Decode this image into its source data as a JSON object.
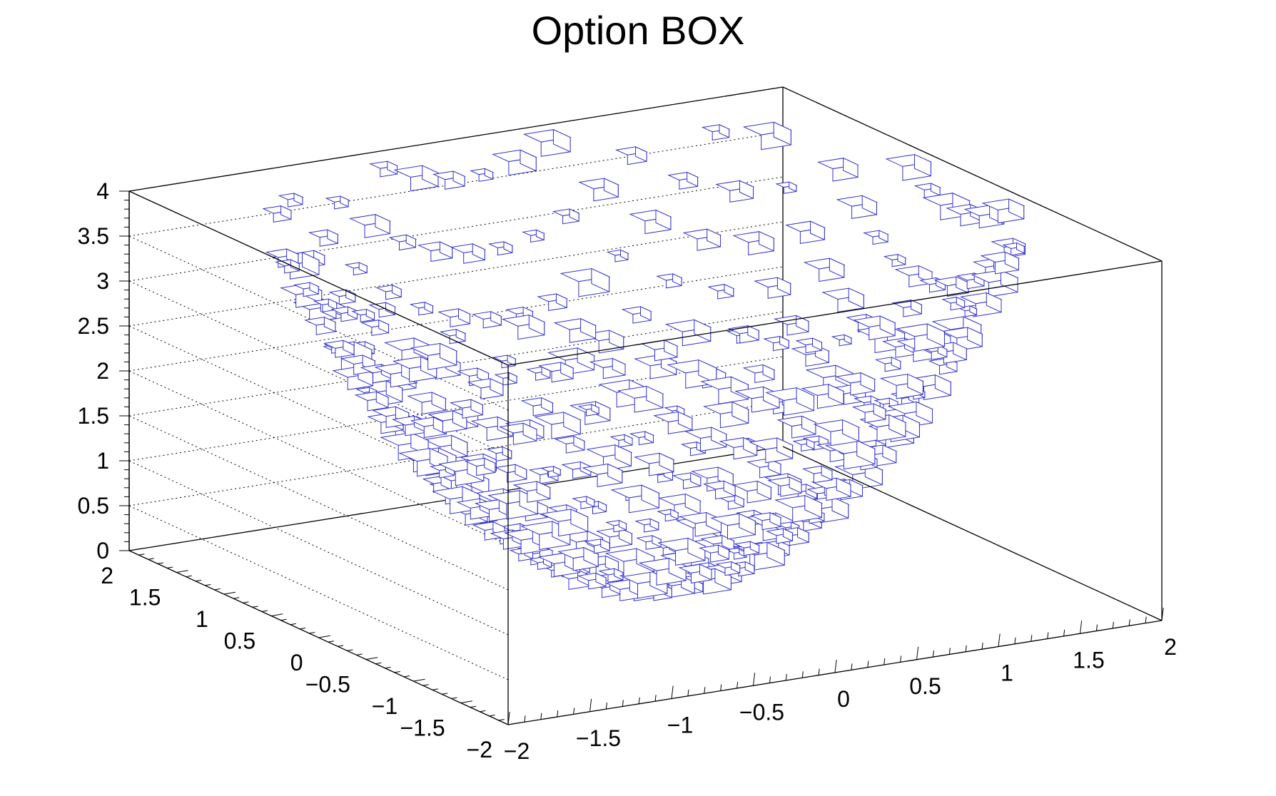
{
  "chart_data": {
    "type": "3d-box",
    "title": "Option BOX",
    "xlabel": "",
    "ylabel": "",
    "zlabel": "",
    "xlim": [
      -2,
      2
    ],
    "ylim": [
      -2,
      2
    ],
    "zlim": [
      0,
      4
    ],
    "x_tick_labels": [
      "−2",
      "−1.5",
      "−1",
      "−0.5",
      "0",
      "0.5",
      "1",
      "1.5",
      "2"
    ],
    "y_tick_labels": [
      "−2",
      "−1.5",
      "−1",
      "−0.5",
      "0",
      "0.5",
      "1",
      "1.5",
      "2"
    ],
    "z_tick_labels": [
      "0",
      "0.5",
      "1",
      "1.5",
      "2",
      "2.5",
      "3",
      "3.5",
      "4"
    ],
    "grid": true,
    "box_color": "#3333cc",
    "axis_color": "#000000",
    "function": "z = x^2 + y^2",
    "x_bins": 20,
    "y_bins": 20,
    "bin_width": 0.2
  }
}
